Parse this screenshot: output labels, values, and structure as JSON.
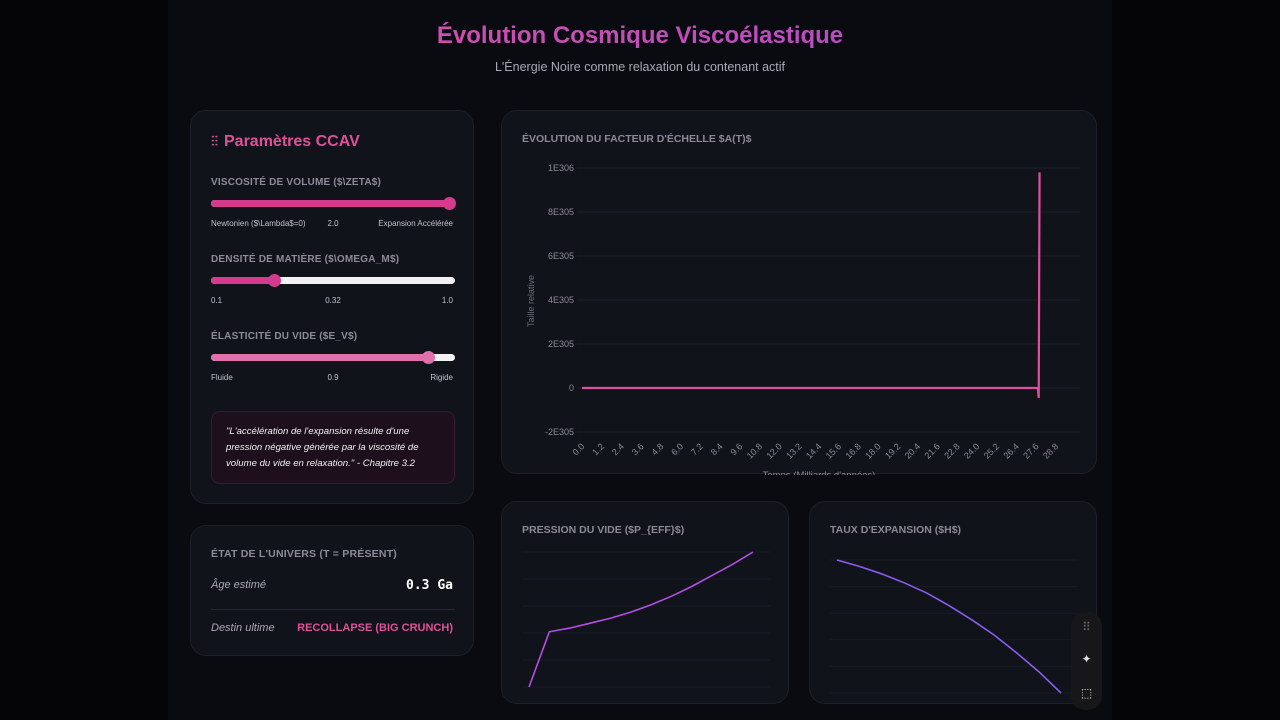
{
  "header": {
    "title": "Évolution Cosmique Viscoélastique",
    "subtitle": "L'Énergie Noire comme relaxation du contenant actif"
  },
  "params": {
    "title": "Paramètres CCAV",
    "icon": "sliders-icon",
    "sliders": [
      {
        "label": "VISCOSITÉ DE VOLUME ($\\ZETA$)",
        "min_label": "Newtonien ($\\Lambda$=0)",
        "value_label": "2.0",
        "max_label": "Expansion Accélérée",
        "fraction": 1.0,
        "color": "#d63a8c"
      },
      {
        "label": "DENSITÉ DE MATIÈRE ($\\OMEGA_M$)",
        "min_label": "0.1",
        "value_label": "0.32",
        "max_label": "1.0",
        "fraction": 0.26,
        "color": "#d63a8c"
      },
      {
        "label": "ÉLASTICITÉ DU VIDE ($E_V$)",
        "min_label": "Fluide",
        "value_label": "0.9",
        "max_label": "Rigide",
        "fraction": 0.89,
        "color": "#e070ac"
      }
    ],
    "quote": "\"L'accélération de l'expansion résulte d'une pression négative générée par la viscosité de volume du vide en relaxation.\"",
    "quote_source": " - Chapitre 3.2"
  },
  "state": {
    "title": "ÉTAT DE L'UNIVERS (T = PRÉSENT)",
    "age_label": "Âge estimé",
    "age_value": "0.3 Ga",
    "fate_label": "Destin ultime",
    "fate_value": "RECOLLAPSE (BIG CRUNCH)",
    "accent": "#e0509a"
  },
  "chart_data": [
    {
      "type": "line",
      "title": "ÉVOLUTION DU FACTEUR D'ÉCHELLE $A(T)$",
      "xlabel": "Temps (Milliards d'années)",
      "ylabel": "Taille relative",
      "x_ticks": [
        "0.0",
        "1.2",
        "2.4",
        "3.6",
        "4.8",
        "6.0",
        "7.2",
        "8.4",
        "9.6",
        "10.8",
        "12.0",
        "13.2",
        "14.4",
        "15.6",
        "16.8",
        "18.0",
        "19.2",
        "20.4",
        "21.6",
        "22.8",
        "24.0",
        "25.2",
        "26.4",
        "27.6",
        "28.8"
      ],
      "y_ticks": [
        "1E306",
        "8E305",
        "6E305",
        "4E305",
        "2E305",
        "0",
        "-2E305"
      ],
      "xlim": [
        0,
        28.8
      ],
      "ylim": [
        -2e+305,
        1e+306
      ],
      "grid": true,
      "color": "#e0509a",
      "points": [
        [
          0,
          0
        ],
        [
          27.7,
          0
        ],
        [
          27.75,
          -4.5e+304
        ],
        [
          27.8,
          9.8e+305
        ]
      ]
    },
    {
      "type": "line",
      "title": "PRESSION DU VIDE ($P_{EFF}$)",
      "color": "#b44fe0",
      "grid": true,
      "values": [
        -1.0,
        -0.55,
        -0.52,
        -0.48,
        -0.44,
        -0.39,
        -0.33,
        -0.26,
        -0.18,
        -0.09,
        0.0,
        0.1
      ]
    },
    {
      "type": "line",
      "title": "TAUX D'EXPANSION ($H$)",
      "color": "#8a5cf0",
      "grid": true,
      "values": [
        1.0,
        0.95,
        0.89,
        0.82,
        0.74,
        0.64,
        0.53,
        0.41,
        0.27,
        0.12,
        -0.05
      ]
    }
  ],
  "toolbar": {
    "icons": [
      "grip-icon",
      "sparkle-icon",
      "select-region-icon"
    ]
  }
}
